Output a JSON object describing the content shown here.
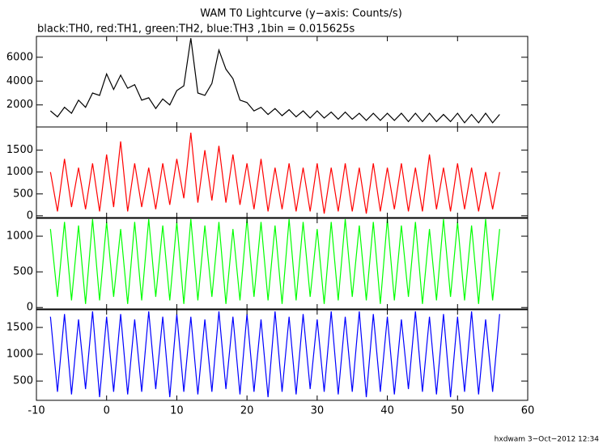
{
  "title": "WAM T0 Lightcurve (y−axis: Counts/s)",
  "subtitle": "black:TH0, red:TH1, green:TH2, blue:TH3 ,1bin = 0.015625s",
  "footer": "hxdwam  3−Oct−2012 12:34",
  "chart_data": [
    {
      "type": "line",
      "xlim": [
        -10,
        60
      ],
      "ylim": [
        150,
        7750
      ],
      "yticks": [
        2000,
        4000,
        6000
      ],
      "x": [
        -8,
        -7,
        -6,
        -5,
        -4,
        -3,
        -2,
        -1,
        0,
        1,
        2,
        3,
        4,
        5,
        6,
        7,
        8,
        9,
        10,
        11,
        12,
        13,
        14,
        15,
        16,
        17,
        18,
        19,
        20,
        21,
        22,
        23,
        24,
        25,
        26,
        27,
        28,
        29,
        30,
        31,
        32,
        33,
        34,
        35,
        36,
        37,
        38,
        39,
        40,
        41,
        42,
        43,
        44,
        45,
        46,
        47,
        48,
        49,
        50,
        51,
        52,
        53,
        54,
        55,
        56
      ],
      "series": [
        {
          "color": "#000000",
          "values": [
            1500,
            1000,
            1800,
            1300,
            2400,
            1800,
            3000,
            2800,
            4600,
            3300,
            4500,
            3400,
            3700,
            2400,
            2600,
            1700,
            2500,
            2000,
            3200,
            3600,
            7600,
            3000,
            2800,
            3800,
            6600,
            5000,
            4200,
            2400,
            2200,
            1500,
            1800,
            1200,
            1700,
            1100,
            1600,
            1000,
            1500,
            900,
            1500,
            900,
            1400,
            800,
            1400,
            800,
            1300,
            700,
            1300,
            700,
            1300,
            700,
            1300,
            600,
            1300,
            600,
            1300,
            600,
            1200,
            600,
            1300,
            500,
            1200,
            500,
            1300,
            500,
            1200
          ]
        }
      ]
    },
    {
      "type": "line",
      "xlim": [
        -10,
        60
      ],
      "ylim": [
        -40,
        2030
      ],
      "yticks": [
        0,
        500,
        1000,
        1500
      ],
      "x": [
        -8,
        -7,
        -6,
        -5,
        -4,
        -3,
        -2,
        -1,
        0,
        1,
        2,
        3,
        4,
        5,
        6,
        7,
        8,
        9,
        10,
        11,
        12,
        13,
        14,
        15,
        16,
        17,
        18,
        19,
        20,
        21,
        22,
        23,
        24,
        25,
        26,
        27,
        28,
        29,
        30,
        31,
        32,
        33,
        34,
        35,
        36,
        37,
        38,
        39,
        40,
        41,
        42,
        43,
        44,
        45,
        46,
        47,
        48,
        49,
        50,
        51,
        52,
        53,
        54,
        55,
        56
      ],
      "series": [
        {
          "color": "#ff0000",
          "values": [
            1000,
            100,
            1300,
            200,
            1100,
            150,
            1200,
            100,
            1400,
            200,
            1700,
            100,
            1200,
            200,
            1100,
            150,
            1200,
            250,
            1300,
            400,
            1900,
            300,
            1500,
            350,
            1600,
            300,
            1400,
            250,
            1200,
            150,
            1300,
            100,
            1100,
            150,
            1200,
            100,
            1100,
            100,
            1200,
            50,
            1100,
            100,
            1200,
            100,
            1100,
            50,
            1200,
            100,
            1100,
            150,
            1200,
            100,
            1100,
            100,
            1400,
            150,
            1100,
            100,
            1200,
            150,
            1100,
            100,
            1000,
            150,
            1000
          ]
        }
      ]
    },
    {
      "type": "line",
      "xlim": [
        -10,
        60
      ],
      "ylim": [
        -20,
        1250
      ],
      "yticks": [
        0,
        500,
        1000
      ],
      "x": [
        -8,
        -7,
        -6,
        -5,
        -4,
        -3,
        -2,
        -1,
        0,
        1,
        2,
        3,
        4,
        5,
        6,
        7,
        8,
        9,
        10,
        11,
        12,
        13,
        14,
        15,
        16,
        17,
        18,
        19,
        20,
        21,
        22,
        23,
        24,
        25,
        26,
        27,
        28,
        29,
        30,
        31,
        32,
        33,
        34,
        35,
        36,
        37,
        38,
        39,
        40,
        41,
        42,
        43,
        44,
        45,
        46,
        47,
        48,
        49,
        50,
        51,
        52,
        53,
        54,
        55,
        56
      ],
      "series": [
        {
          "color": "#00ff00",
          "values": [
            1100,
            150,
            1200,
            100,
            1150,
            50,
            1240,
            100,
            1200,
            150,
            1100,
            50,
            1200,
            100,
            1240,
            150,
            1150,
            100,
            1200,
            50,
            1240,
            100,
            1150,
            150,
            1200,
            50,
            1100,
            100,
            1240,
            150,
            1200,
            100,
            1150,
            50,
            1240,
            100,
            1200,
            150,
            1100,
            50,
            1200,
            100,
            1240,
            150,
            1150,
            100,
            1200,
            50,
            1240,
            100,
            1150,
            150,
            1200,
            50,
            1100,
            100,
            1240,
            150,
            1200,
            100,
            1150,
            50,
            1240,
            100,
            1100
          ]
        }
      ]
    },
    {
      "type": "line",
      "xlim": [
        -10,
        60
      ],
      "ylim": [
        140,
        1830
      ],
      "yticks": [
        500,
        1000,
        1500
      ],
      "xticks": [
        -10,
        0,
        10,
        20,
        30,
        40,
        50,
        60
      ],
      "x": [
        -8,
        -7,
        -6,
        -5,
        -4,
        -3,
        -2,
        -1,
        0,
        1,
        2,
        3,
        4,
        5,
        6,
        7,
        8,
        9,
        10,
        11,
        12,
        13,
        14,
        15,
        16,
        17,
        18,
        19,
        20,
        21,
        22,
        23,
        24,
        25,
        26,
        27,
        28,
        29,
        30,
        31,
        32,
        33,
        34,
        35,
        36,
        37,
        38,
        39,
        40,
        41,
        42,
        43,
        44,
        45,
        46,
        47,
        48,
        49,
        50,
        51,
        52,
        53,
        54,
        55,
        56
      ],
      "series": [
        {
          "color": "#0000ff",
          "values": [
            1700,
            300,
            1750,
            250,
            1650,
            350,
            1800,
            200,
            1700,
            300,
            1750,
            250,
            1650,
            300,
            1800,
            350,
            1700,
            200,
            1750,
            300,
            1700,
            250,
            1650,
            300,
            1800,
            350,
            1700,
            250,
            1750,
            300,
            1650,
            200,
            1800,
            300,
            1700,
            250,
            1750,
            350,
            1650,
            300,
            1800,
            250,
            1700,
            300,
            1800,
            200,
            1750,
            300,
            1700,
            250,
            1650,
            350,
            1800,
            300,
            1700,
            250,
            1750,
            200,
            1700,
            300,
            1800,
            250,
            1650,
            300,
            1750
          ]
        }
      ]
    }
  ]
}
